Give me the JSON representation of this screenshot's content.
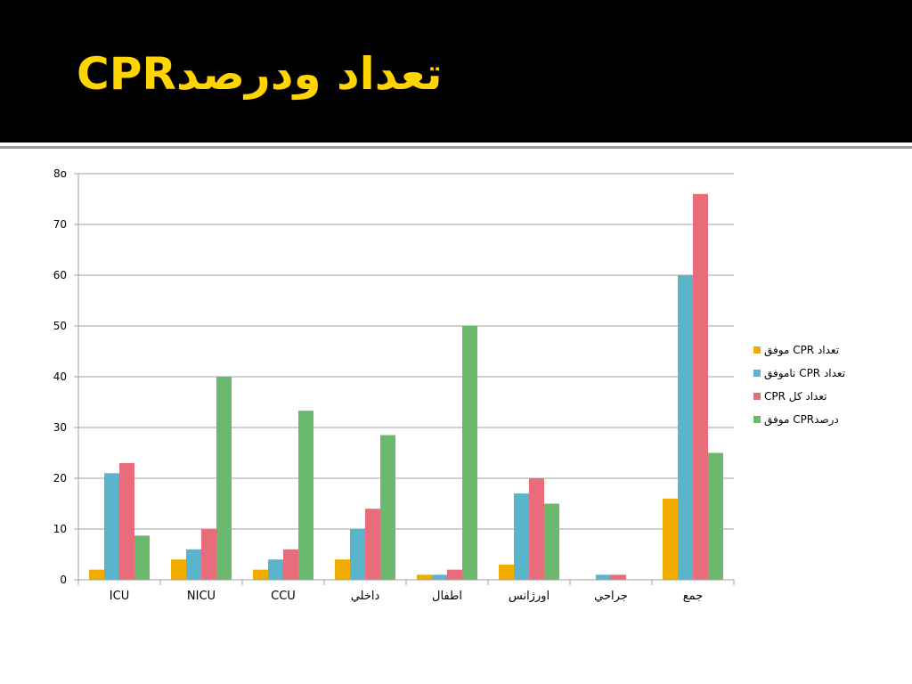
{
  "slide": {
    "title": "تعداد ودرصدCPR"
  },
  "chart_data": {
    "type": "bar",
    "title": "",
    "xlabel": "",
    "ylabel": "",
    "ylim": [
      0,
      80
    ],
    "yticks": [
      0,
      10,
      20,
      30,
      40,
      50,
      60,
      70,
      80
    ],
    "ytick_labels": [
      "0",
      "10",
      "20",
      "30",
      "40",
      "50",
      "60",
      "70",
      "8o"
    ],
    "grid": true,
    "legend_position": "right",
    "categories": [
      "ICU",
      "NICU",
      "CCU",
      "داخلي",
      "اطفال",
      "اورژانس",
      "جراحي",
      "جمع"
    ],
    "series": [
      {
        "name": "تعداد CPR موفق",
        "color": "#f0ad00",
        "values": [
          2,
          4,
          2,
          4,
          1,
          3,
          0,
          16
        ]
      },
      {
        "name": "تعداد CPR ناموفق",
        "color": "#5ab4cc",
        "values": [
          21,
          6,
          4,
          10,
          1,
          17,
          1,
          60
        ]
      },
      {
        "name": "تعداد  کل CPR",
        "color": "#e86c7a",
        "values": [
          23,
          10,
          6,
          14,
          2,
          20,
          1,
          76
        ]
      },
      {
        "name": "درصدCPR موفق",
        "color": "#6ab96e",
        "values": [
          8.7,
          40,
          33.3,
          28.5,
          50,
          15,
          0,
          25
        ]
      }
    ]
  }
}
